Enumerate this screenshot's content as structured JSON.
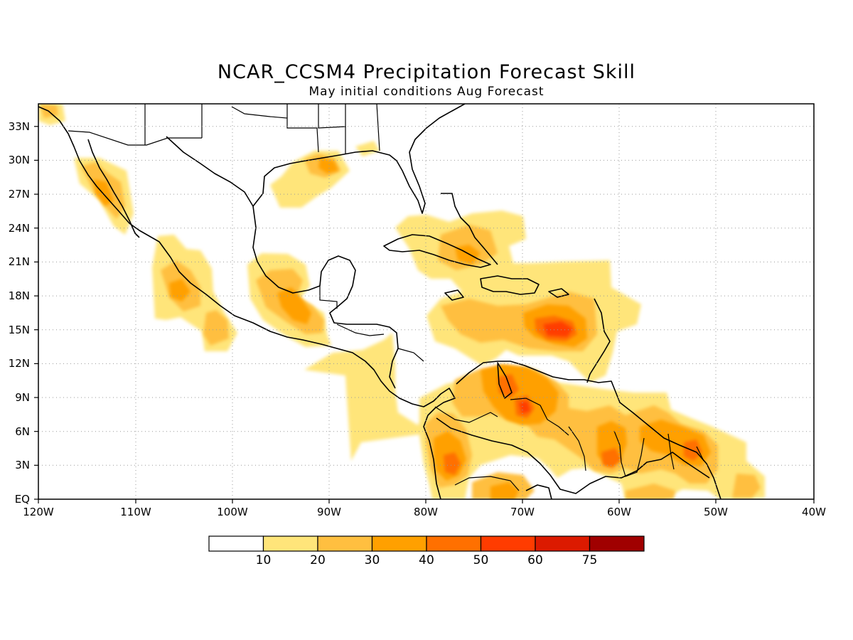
{
  "title": "NCAR_CCSM4 Precipitation Forecast Skill",
  "subtitle": "May initial conditions  Aug Forecast",
  "map": {
    "lon_range": [
      -120,
      -40
    ],
    "lat_range": [
      0,
      35
    ],
    "x_tick_labels": [
      "120W",
      "110W",
      "100W",
      "90W",
      "80W",
      "70W",
      "60W",
      "50W",
      "40W"
    ],
    "y_tick_labels": [
      "EQ",
      "3N",
      "6N",
      "9N",
      "12N",
      "15N",
      "18N",
      "21N",
      "24N",
      "27N",
      "30N",
      "33N"
    ],
    "gridlines": true
  },
  "colorbar": {
    "labels": [
      "10",
      "20",
      "30",
      "40",
      "50",
      "60",
      "75"
    ],
    "colors": [
      "#ffffff",
      "#ffe57a",
      "#ffbf40",
      "#ffa000",
      "#ff7000",
      "#ff3c00",
      "#dc1a00",
      "#a00000"
    ]
  },
  "chart_data": {
    "type": "heatmap",
    "title": "NCAR_CCSM4 Precipitation Forecast Skill",
    "subtitle": "May initial conditions  Aug Forecast",
    "xlim": [
      -120,
      -40
    ],
    "ylim": [
      0,
      35
    ],
    "levels": [
      10,
      20,
      30,
      40,
      50,
      60,
      75
    ],
    "skill_regions": [
      {
        "level": 20,
        "lon": [
          -120,
          -118
        ],
        "lat": [
          33,
          35
        ]
      },
      {
        "level": 30,
        "lon": [
          -115,
          -111
        ],
        "lat": [
          25,
          29
        ]
      },
      {
        "level": 20,
        "lon": [
          -106,
          -102
        ],
        "lat": [
          15,
          20
        ]
      },
      {
        "level": 30,
        "lon": [
          -103,
          -101
        ],
        "lat": [
          13,
          16
        ]
      },
      {
        "level": 20,
        "lon": [
          -97,
          -89
        ],
        "lat": [
          14,
          21
        ]
      },
      {
        "level": 30,
        "lon": [
          -95,
          -91
        ],
        "lat": [
          16,
          19
        ]
      },
      {
        "level": 30,
        "lon": [
          -92,
          -88
        ],
        "lat": [
          29,
          30
        ]
      },
      {
        "level": 20,
        "lon": [
          -93,
          -86
        ],
        "lat": [
          4,
          12
        ]
      },
      {
        "level": 20,
        "lon": [
          -85,
          -75
        ],
        "lat": [
          19,
          25
        ]
      },
      {
        "level": 30,
        "lon": [
          -82,
          -76
        ],
        "lat": [
          19,
          23
        ]
      },
      {
        "level": 20,
        "lon": [
          -74,
          -62
        ],
        "lat": [
          11,
          20
        ]
      },
      {
        "level": 40,
        "lon": [
          -69,
          -64
        ],
        "lat": [
          14,
          16
        ]
      },
      {
        "level": 50,
        "lon": [
          -67,
          -65
        ],
        "lat": [
          14.5,
          15.5
        ]
      },
      {
        "level": 30,
        "lon": [
          -74,
          -65
        ],
        "lat": [
          5,
          11
        ]
      },
      {
        "level": 40,
        "lon": [
          -73,
          -68
        ],
        "lat": [
          6,
          10
        ]
      },
      {
        "level": 50,
        "lon": [
          -71,
          -69
        ],
        "lat": [
          7,
          9
        ]
      },
      {
        "level": 30,
        "lon": [
          -63,
          -48
        ],
        "lat": [
          3,
          8
        ]
      },
      {
        "level": 40,
        "lon": [
          -62,
          -58
        ],
        "lat": [
          3,
          5
        ]
      },
      {
        "level": 40,
        "lon": [
          -54,
          -51
        ],
        "lat": [
          3,
          5
        ]
      },
      {
        "level": 30,
        "lon": [
          -80,
          -75
        ],
        "lat": [
          2,
          6
        ]
      },
      {
        "level": 40,
        "lon": [
          -78,
          -76
        ],
        "lat": [
          2.5,
          4
        ]
      },
      {
        "level": 30,
        "lon": [
          -74,
          -68
        ],
        "lat": [
          0,
          2
        ]
      }
    ]
  }
}
